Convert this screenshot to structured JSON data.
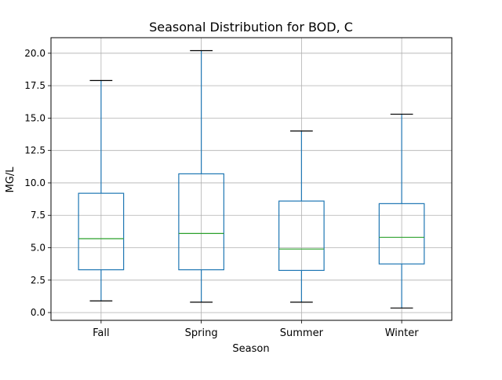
{
  "chart_data": {
    "type": "box",
    "title": "Seasonal Distribution for BOD, C",
    "xlabel": "Season",
    "ylabel": "MG/L",
    "ylim": [
      -0.6,
      21.2
    ],
    "yticks": [
      0.0,
      2.5,
      5.0,
      7.5,
      10.0,
      12.5,
      15.0,
      17.5,
      20.0
    ],
    "ytick_labels": [
      "0.0",
      "2.5",
      "5.0",
      "7.5",
      "10.0",
      "12.5",
      "15.0",
      "17.5",
      "20.0"
    ],
    "grid": true,
    "categories": [
      "Fall",
      "Spring",
      "Summer",
      "Winter"
    ],
    "boxes": [
      {
        "category": "Fall",
        "whisker_low": 0.9,
        "q1": 3.3,
        "median": 5.7,
        "q3": 9.2,
        "whisker_high": 17.9
      },
      {
        "category": "Spring",
        "whisker_low": 0.8,
        "q1": 3.3,
        "median": 6.1,
        "q3": 10.7,
        "whisker_high": 20.2
      },
      {
        "category": "Summer",
        "whisker_low": 0.8,
        "q1": 3.25,
        "median": 4.9,
        "q3": 8.6,
        "whisker_high": 14.0
      },
      {
        "category": "Winter",
        "whisker_low": 0.35,
        "q1": 3.75,
        "median": 5.8,
        "q3": 8.4,
        "whisker_high": 15.3
      }
    ],
    "colors": {
      "box": "#1f77b4",
      "median": "#2ca02c",
      "cap": "#000000",
      "grid": "#b0b0b0"
    }
  }
}
